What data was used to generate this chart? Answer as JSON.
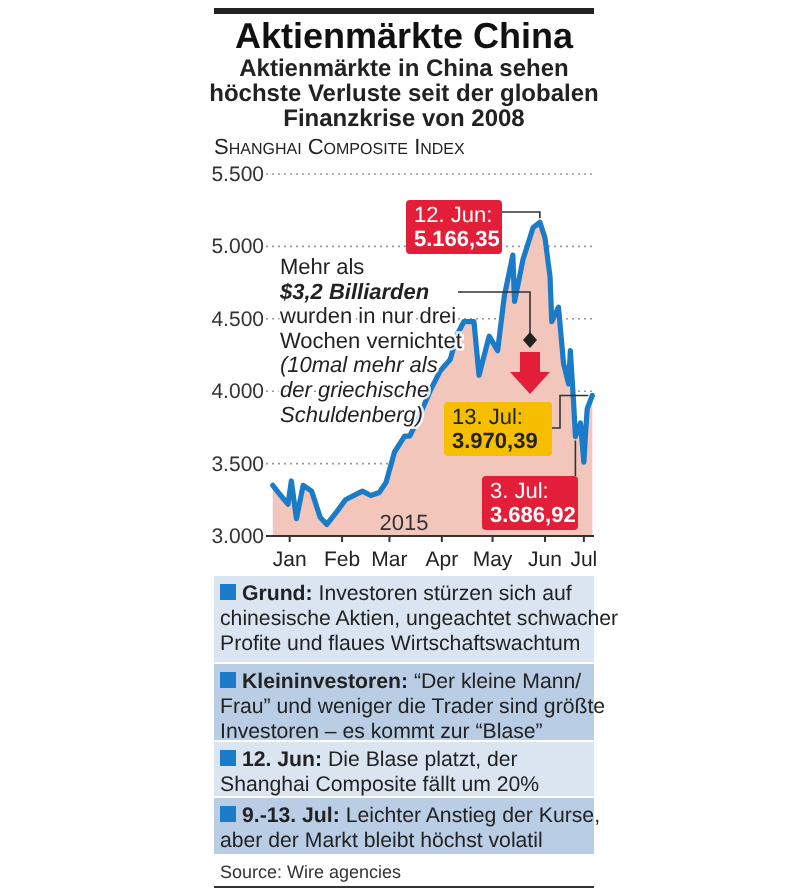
{
  "chart_data": {
    "type": "area",
    "title": "Aktienmärkte China",
    "subtitle": "Aktienmärkte in China sehen\nhöchste Verluste seit der globalen\nFinanzkrise von 2008",
    "ylabel": "Shanghai Composite Index",
    "x": [
      "2015-01-05",
      "2015-01-09",
      "2015-01-14",
      "2015-01-16",
      "2015-01-19",
      "2015-01-23",
      "2015-01-28",
      "2015-02-02",
      "2015-02-06",
      "2015-02-12",
      "2015-02-17",
      "2015-02-27",
      "2015-03-04",
      "2015-03-09",
      "2015-03-13",
      "2015-03-18",
      "2015-03-24",
      "2015-03-27",
      "2015-04-01",
      "2015-04-08",
      "2015-04-14",
      "2015-04-20",
      "2015-04-24",
      "2015-04-28",
      "2015-05-04",
      "2015-05-07",
      "2015-05-13",
      "2015-05-18",
      "2015-05-22",
      "2015-05-27",
      "2015-05-28",
      "2015-06-02",
      "2015-06-05",
      "2015-06-08",
      "2015-06-12",
      "2015-06-15",
      "2015-06-18",
      "2015-06-19",
      "2015-06-23",
      "2015-06-26",
      "2015-06-29",
      "2015-06-30",
      "2015-07-02",
      "2015-07-03",
      "2015-07-06",
      "2015-07-08",
      "2015-07-09",
      "2015-07-10",
      "2015-07-13"
    ],
    "series": [
      {
        "color": "#f2c6bb",
        "values": [
          3350,
          3290,
          3220,
          3380,
          3120,
          3350,
          3310,
          3130,
          3080,
          3170,
          3250,
          3310,
          3280,
          3300,
          3370,
          3580,
          3690,
          3690,
          3810,
          4000,
          4140,
          4220,
          4390,
          4480,
          4480,
          4110,
          4380,
          4280,
          4660,
          4940,
          4620,
          4910,
          5020,
          5130,
          5166.35,
          5060,
          4790,
          4480,
          4580,
          4190,
          4050,
          4280,
          3910,
          3686.92,
          3780,
          3510,
          3710,
          3880,
          3970.39
        ]
      },
      {
        "type": "line",
        "color": "#1a7cc9",
        "values": [
          3350,
          3290,
          3220,
          3380,
          3120,
          3350,
          3310,
          3130,
          3080,
          3170,
          3250,
          3310,
          3280,
          3300,
          3370,
          3580,
          3690,
          3690,
          3810,
          4000,
          4140,
          4220,
          4390,
          4480,
          4480,
          4110,
          4380,
          4280,
          4660,
          4940,
          4620,
          4910,
          5020,
          5130,
          5166.35,
          5060,
          4790,
          4480,
          4580,
          4190,
          4050,
          4280,
          3910,
          3686.92,
          3780,
          3510,
          3710,
          3880,
          3970.39
        ]
      }
    ],
    "xlim": [
      "2015-01-01",
      "2015-07-14"
    ],
    "xticks": [
      {
        "value": "2015-01-15",
        "label": "Jan"
      },
      {
        "value": "2015-02-15",
        "label": "Feb"
      },
      {
        "value": "2015-03-15",
        "label": "Mar"
      },
      {
        "value": "2015-04-15",
        "label": "Apr"
      },
      {
        "value": "2015-05-15",
        "label": "May"
      },
      {
        "value": "2015-06-15",
        "label": "Jun"
      },
      {
        "value": "2015-07-08",
        "label": "Jul"
      }
    ],
    "ylim": [
      3000,
      5500
    ],
    "yticks": [
      {
        "value": 3000,
        "label": "3.000"
      },
      {
        "value": 3500,
        "label": "3.500"
      },
      {
        "value": 4000,
        "label": "4.000"
      },
      {
        "value": 4500,
        "label": "4.500"
      },
      {
        "value": 5000,
        "label": "5.000"
      },
      {
        "value": 5500,
        "label": "5.500"
      }
    ],
    "grid": "y",
    "annotations": [
      "Mehr als\n$3,2 Billiarden\nwurden in nur drei\nWochen vernichtet\n(10mal mehr als\nder griechische\nSchuldenberg)",
      "2015",
      {
        "text": "12. Jun:\n5.166,35",
        "x": "2015-06-12",
        "y": 5166.35
      },
      {
        "text": "13. Jul:\n3.970,39",
        "x": "2015-07-13",
        "y": 3970.39
      },
      {
        "text": "3. Jul:\n3.686,92",
        "x": "2015-07-03",
        "y": 3686.92
      },
      "Grund: Investoren stürzen sich auf\nchinesische Aktien, ungeachtet schwacher\nProfite und flaues Wirtschaftswachtum",
      "Kleininvestoren: “Der kleine Mann/\nFrau” und weniger die Trader sind größte\nInvestoren – es kommt zur “Blase”",
      "12. Jun: Die Blase platzt, der\nShanghai Composite fällt um 20%",
      "9.-13. Jul: Leichter Anstieg der Kurse,\naber der Markt bleibt höchst volatil",
      "Source: Wire agencies"
    ]
  }
}
